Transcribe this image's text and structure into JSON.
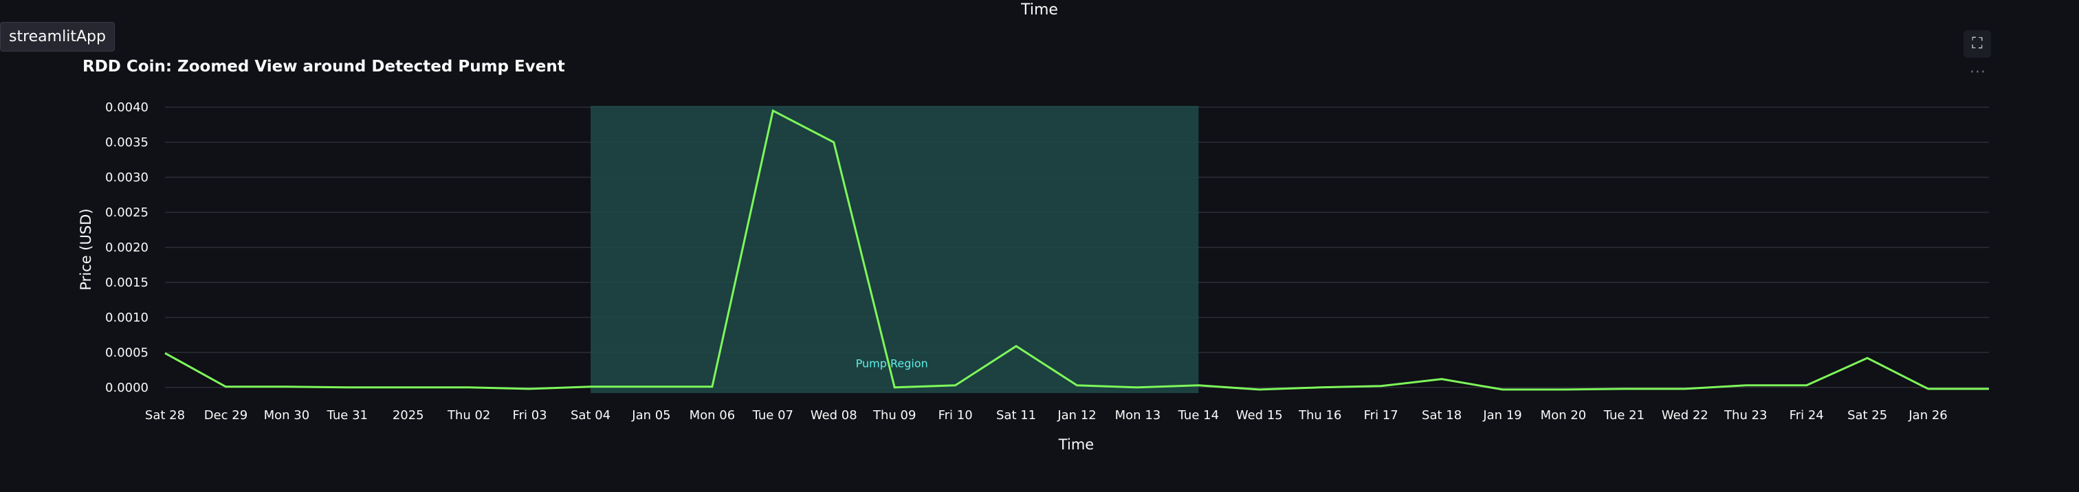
{
  "window": {
    "top_title": "Time",
    "app_name": "streamlitApp",
    "fullscreen_icon": "fullscreen-icon",
    "menu_icon": "more-horizontal-icon"
  },
  "chart_data": {
    "type": "line",
    "title": "RDD Coin: Zoomed View around Detected Pump Event",
    "xlabel": "Time",
    "ylabel": "Price (USD)",
    "ylim": [
      -8e-05,
      0.00402
    ],
    "y_ticks": [
      "0.0040",
      "0.0035",
      "0.0030",
      "0.0025",
      "0.0020",
      "0.0015",
      "0.0010",
      "0.0005",
      "0.0000"
    ],
    "y_tick_values": [
      0.004,
      0.0035,
      0.003,
      0.0025,
      0.002,
      0.0015,
      0.001,
      0.0005,
      0
    ],
    "x_ticks": [
      "Sat 28",
      "Dec 29",
      "Mon 30",
      "Tue 31",
      "2025",
      "Thu 02",
      "Fri 03",
      "Sat 04",
      "Jan 05",
      "Mon 06",
      "Tue 07",
      "Wed 08",
      "Thu 09",
      "Fri 10",
      "Sat 11",
      "Jan 12",
      "Mon 13",
      "Tue 14",
      "Wed 15",
      "Thu 16",
      "Fri 17",
      "Sat 18",
      "Jan 19",
      "Mon 20",
      "Tue 21",
      "Wed 22",
      "Thu 23",
      "Fri 24",
      "Sat 25",
      "Jan 26"
    ],
    "x": [
      "2024-12-28",
      "2024-12-29",
      "2024-12-30",
      "2024-12-31",
      "2025-01-01",
      "2025-01-02",
      "2025-01-03",
      "2025-01-04",
      "2025-01-05",
      "2025-01-06",
      "2025-01-07",
      "2025-01-08",
      "2025-01-09",
      "2025-01-10",
      "2025-01-11",
      "2025-01-12",
      "2025-01-13",
      "2025-01-14",
      "2025-01-15",
      "2025-01-16",
      "2025-01-17",
      "2025-01-18",
      "2025-01-19",
      "2025-01-20",
      "2025-01-21",
      "2025-01-22",
      "2025-01-23",
      "2025-01-24",
      "2025-01-25",
      "2025-01-26",
      "2025-01-27"
    ],
    "series": [
      {
        "values": [
          0.00049,
          1e-05,
          1e-05,
          0.0,
          0.0,
          0.0,
          -2e-05,
          1e-05,
          1e-05,
          1e-05,
          0.00395,
          0.0035,
          0.0,
          3e-05,
          0.00059,
          3e-05,
          0.0,
          3e-05,
          -3e-05,
          0.0,
          2e-05,
          0.00012,
          -3e-05,
          -3e-05,
          -2e-05,
          -2e-05,
          3e-05,
          3e-05,
          0.00042,
          -2e-05,
          -2e-05
        ],
        "color": "#7ef85a"
      }
    ],
    "highlight": {
      "label": "Pump Region",
      "x_start": "2025-01-04",
      "x_end": "2025-01-14",
      "color": "#1e4a48"
    },
    "grid": true
  }
}
